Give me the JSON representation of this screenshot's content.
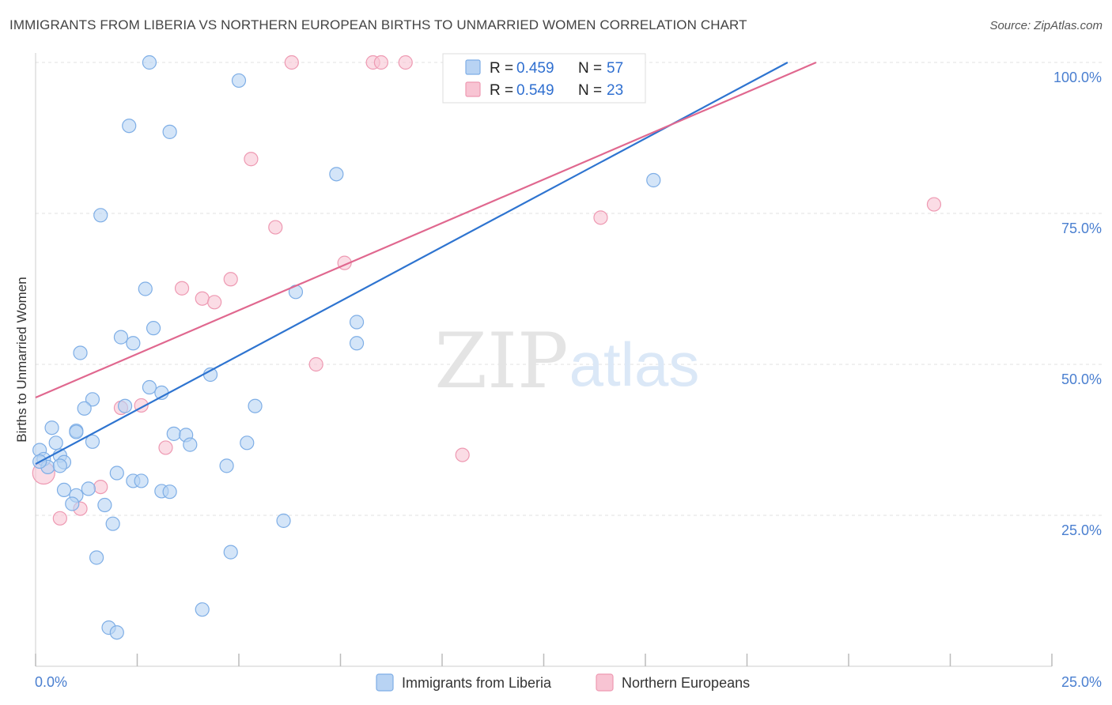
{
  "title": "IMMIGRANTS FROM LIBERIA VS NORTHERN EUROPEAN BIRTHS TO UNMARRIED WOMEN CORRELATION CHART",
  "source": "Source: ZipAtlas.com",
  "watermark": {
    "zip": "ZIP",
    "atlas": "atlas"
  },
  "colors": {
    "blue_fill": "#b8d3f3",
    "blue_stroke": "#7eaee6",
    "blue_line": "#2e74d0",
    "pink_fill": "#f8c4d3",
    "pink_stroke": "#ee99b2",
    "pink_line": "#e0688f"
  },
  "chart_data": {
    "type": "scatter",
    "ylabel": "Births to Unmarried Women",
    "xlim": [
      0,
      25
    ],
    "ylim": [
      0,
      100
    ],
    "x_tick_labels": [
      "0.0%",
      "25.0%"
    ],
    "y_ticks": [
      25,
      50,
      75,
      100
    ],
    "y_tick_labels": [
      "25.0%",
      "50.0%",
      "75.0%",
      "100.0%"
    ],
    "grid": true,
    "legend_top": [
      {
        "r_label": "R =",
        "r": "0.459",
        "n_label": "N =",
        "n": "57"
      },
      {
        "r_label": "R =",
        "r": "0.549",
        "n_label": "N =",
        "n": "23"
      }
    ],
    "series": [
      {
        "name": "Immigrants from Liberia",
        "color": "blue",
        "trend": [
          [
            0,
            33.5
          ],
          [
            18.5,
            100
          ]
        ],
        "points": [
          [
            2.8,
            100
          ],
          [
            5.0,
            97
          ],
          [
            2.3,
            89.5
          ],
          [
            3.3,
            88.5
          ],
          [
            7.4,
            81.5
          ],
          [
            15.2,
            80.5
          ],
          [
            1.6,
            74.7
          ],
          [
            2.7,
            62.5
          ],
          [
            6.4,
            62
          ],
          [
            7.9,
            57
          ],
          [
            2.9,
            56
          ],
          [
            2.1,
            54.5
          ],
          [
            2.4,
            53.5
          ],
          [
            7.9,
            53.5
          ],
          [
            1.1,
            51.9
          ],
          [
            4.3,
            48.3
          ],
          [
            2.8,
            46.2
          ],
          [
            3.1,
            45.3
          ],
          [
            1.4,
            44.2
          ],
          [
            1.2,
            42.7
          ],
          [
            2.2,
            43.1
          ],
          [
            5.4,
            43.1
          ],
          [
            0.4,
            39.5
          ],
          [
            1.0,
            39.0
          ],
          [
            1.0,
            38.8
          ],
          [
            3.4,
            38.5
          ],
          [
            3.7,
            38.3
          ],
          [
            0.5,
            37.0
          ],
          [
            1.4,
            37.2
          ],
          [
            3.8,
            36.7
          ],
          [
            5.2,
            37.0
          ],
          [
            0.1,
            35.8
          ],
          [
            0.6,
            34.9
          ],
          [
            0.2,
            34.3
          ],
          [
            0.7,
            33.8
          ],
          [
            0.3,
            33.0
          ],
          [
            0.6,
            33.2
          ],
          [
            4.7,
            33.2
          ],
          [
            2.0,
            32.0
          ],
          [
            2.4,
            30.7
          ],
          [
            2.6,
            30.7
          ],
          [
            0.7,
            29.2
          ],
          [
            1.3,
            29.4
          ],
          [
            3.1,
            29.0
          ],
          [
            3.3,
            28.9
          ],
          [
            1.0,
            28.3
          ],
          [
            0.9,
            26.9
          ],
          [
            1.7,
            26.7
          ],
          [
            6.1,
            24.1
          ],
          [
            1.9,
            23.6
          ],
          [
            1.5,
            18.0
          ],
          [
            4.8,
            18.9
          ],
          [
            4.1,
            9.4
          ],
          [
            1.8,
            6.4
          ],
          [
            2.0,
            5.6
          ],
          [
            0.1,
            33.9
          ],
          [
            11.0,
            100
          ]
        ]
      },
      {
        "name": "Northern Europeans",
        "color": "pink",
        "trend": [
          [
            0,
            44.5
          ],
          [
            19.2,
            100
          ]
        ],
        "points": [
          [
            6.3,
            100
          ],
          [
            8.3,
            100
          ],
          [
            8.5,
            100
          ],
          [
            9.1,
            100
          ],
          [
            10.2,
            100
          ],
          [
            5.3,
            84
          ],
          [
            22.1,
            76.5
          ],
          [
            13.9,
            74.3
          ],
          [
            5.9,
            72.7
          ],
          [
            7.6,
            66.8
          ],
          [
            4.8,
            64.1
          ],
          [
            3.6,
            62.6
          ],
          [
            4.1,
            60.9
          ],
          [
            4.4,
            60.3
          ],
          [
            6.9,
            50.0
          ],
          [
            2.6,
            43.2
          ],
          [
            2.1,
            42.8
          ],
          [
            3.2,
            36.2
          ],
          [
            10.5,
            35.0
          ],
          [
            1.6,
            29.7
          ],
          [
            1.1,
            26.1
          ],
          [
            0.6,
            24.5
          ],
          [
            0.2,
            32.0
          ]
        ]
      }
    ]
  }
}
